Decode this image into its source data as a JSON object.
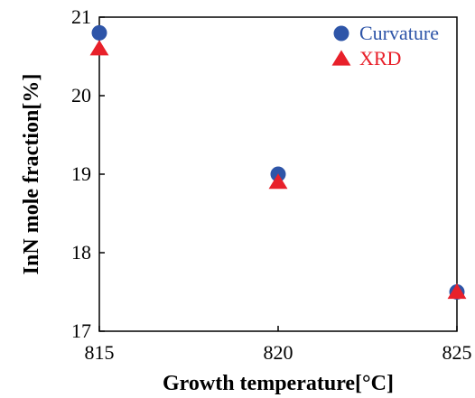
{
  "chart_data": {
    "type": "scatter",
    "xlabel": "Growth temperature[°C]",
    "ylabel": "InN mole fraction[%]",
    "xlim": [
      815,
      825
    ],
    "ylim": [
      17,
      21
    ],
    "xticks": [
      "815",
      "820",
      "825"
    ],
    "yticks": [
      "17",
      "18",
      "19",
      "20",
      "21"
    ],
    "grid": false,
    "legend_position": "top-right",
    "series": [
      {
        "name": "Curvature",
        "marker": "circle",
        "color": "#2e55a8",
        "x": [
          815,
          820,
          825
        ],
        "y": [
          20.8,
          19.0,
          17.5
        ]
      },
      {
        "name": "XRD",
        "marker": "triangle",
        "color": "#e8202a",
        "x": [
          815,
          820,
          825
        ],
        "y": [
          20.6,
          18.9,
          17.5
        ]
      }
    ]
  }
}
